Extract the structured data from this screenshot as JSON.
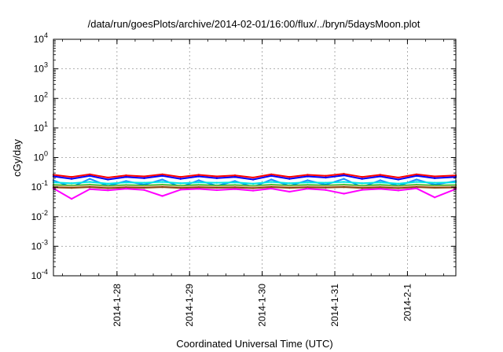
{
  "chart_data": {
    "type": "line",
    "title": "/data/run/goesPlots/archive/2014-02-01/16:00/flux/../bryn/5daysMoon.plot",
    "xlabel": "Coordinated Universal Time (UTC)",
    "ylabel": "cGy/day",
    "yscale": "log",
    "ylim": [
      0.0001,
      10000
    ],
    "xlim": [
      "2014-01-27 03:00",
      "2014-02-01 16:00"
    ],
    "grid": true,
    "y_ticks": [
      {
        "base": "10",
        "exp": "-4"
      },
      {
        "base": "10",
        "exp": "-3"
      },
      {
        "base": "10",
        "exp": "-2"
      },
      {
        "base": "10",
        "exp": "-1"
      },
      {
        "base": "10",
        "exp": "0"
      },
      {
        "base": "10",
        "exp": "1"
      },
      {
        "base": "10",
        "exp": "2"
      },
      {
        "base": "10",
        "exp": "3"
      },
      {
        "base": "10",
        "exp": "4"
      }
    ],
    "x_ticks": [
      {
        "date": "2014-01-28 00:00",
        "label": "2014-1-28"
      },
      {
        "date": "2014-01-29 00:00",
        "label": "2014-1-29"
      },
      {
        "date": "2014-01-30 00:00",
        "label": "2014-1-30"
      },
      {
        "date": "2014-01-31 00:00",
        "label": "2014-1-31"
      },
      {
        "date": "2014-02-01 00:00",
        "label": "2014-2-1"
      }
    ],
    "x": [
      "2014-01-27 03:00",
      "2014-01-27 09:00",
      "2014-01-27 15:00",
      "2014-01-27 21:00",
      "2014-01-28 03:00",
      "2014-01-28 09:00",
      "2014-01-28 15:00",
      "2014-01-28 21:00",
      "2014-01-29 03:00",
      "2014-01-29 09:00",
      "2014-01-29 15:00",
      "2014-01-29 21:00",
      "2014-01-30 03:00",
      "2014-01-30 09:00",
      "2014-01-30 15:00",
      "2014-01-30 21:00",
      "2014-01-31 03:00",
      "2014-01-31 09:00",
      "2014-01-31 15:00",
      "2014-01-31 21:00",
      "2014-02-01 03:00",
      "2014-02-01 09:00",
      "2014-02-01 16:00"
    ],
    "series": [
      {
        "color": "#ff0000",
        "values": [
          0.26,
          0.22,
          0.27,
          0.21,
          0.25,
          0.23,
          0.27,
          0.22,
          0.26,
          0.23,
          0.25,
          0.21,
          0.27,
          0.22,
          0.26,
          0.24,
          0.28,
          0.22,
          0.26,
          0.21,
          0.27,
          0.23,
          0.25
        ]
      },
      {
        "color": "#0000ff",
        "values": [
          0.23,
          0.19,
          0.24,
          0.18,
          0.22,
          0.2,
          0.24,
          0.19,
          0.23,
          0.2,
          0.22,
          0.18,
          0.24,
          0.19,
          0.23,
          0.21,
          0.25,
          0.19,
          0.23,
          0.18,
          0.24,
          0.2,
          0.22
        ]
      },
      {
        "color": "#1e90ff",
        "values": [
          0.17,
          0.1,
          0.19,
          0.11,
          0.16,
          0.12,
          0.18,
          0.1,
          0.17,
          0.11,
          0.16,
          0.1,
          0.18,
          0.11,
          0.17,
          0.12,
          0.19,
          0.1,
          0.17,
          0.11,
          0.18,
          0.12,
          0.16
        ]
      },
      {
        "color": "#00e5e5",
        "values": [
          0.145,
          0.135,
          0.15,
          0.13,
          0.145,
          0.14,
          0.15,
          0.135,
          0.145,
          0.14,
          0.145,
          0.13,
          0.15,
          0.135,
          0.145,
          0.14,
          0.15,
          0.135,
          0.145,
          0.13,
          0.15,
          0.14,
          0.145
        ]
      },
      {
        "color": "#00c000",
        "values": [
          0.118,
          0.112,
          0.12,
          0.11,
          0.117,
          0.113,
          0.12,
          0.111,
          0.118,
          0.113,
          0.117,
          0.11,
          0.12,
          0.112,
          0.118,
          0.114,
          0.12,
          0.111,
          0.118,
          0.11,
          0.12,
          0.113,
          0.117
        ]
      },
      {
        "color": "#d2b48c",
        "values": [
          0.11,
          0.105,
          0.112,
          0.103,
          0.109,
          0.106,
          0.112,
          0.104,
          0.11,
          0.106,
          0.109,
          0.103,
          0.112,
          0.105,
          0.11,
          0.107,
          0.112,
          0.104,
          0.11,
          0.103,
          0.112,
          0.106,
          0.109
        ]
      },
      {
        "color": "#8b4513",
        "values": [
          0.098,
          0.094,
          0.1,
          0.092,
          0.097,
          0.095,
          0.1,
          0.093,
          0.098,
          0.095,
          0.097,
          0.092,
          0.1,
          0.094,
          0.098,
          0.096,
          0.1,
          0.093,
          0.098,
          0.092,
          0.1,
          0.095,
          0.097
        ]
      },
      {
        "color": "#ff00ff",
        "values": [
          0.09,
          0.04,
          0.085,
          0.078,
          0.088,
          0.08,
          0.05,
          0.082,
          0.087,
          0.079,
          0.086,
          0.076,
          0.089,
          0.07,
          0.088,
          0.08,
          0.06,
          0.081,
          0.087,
          0.077,
          0.09,
          0.045,
          0.086
        ]
      }
    ]
  }
}
